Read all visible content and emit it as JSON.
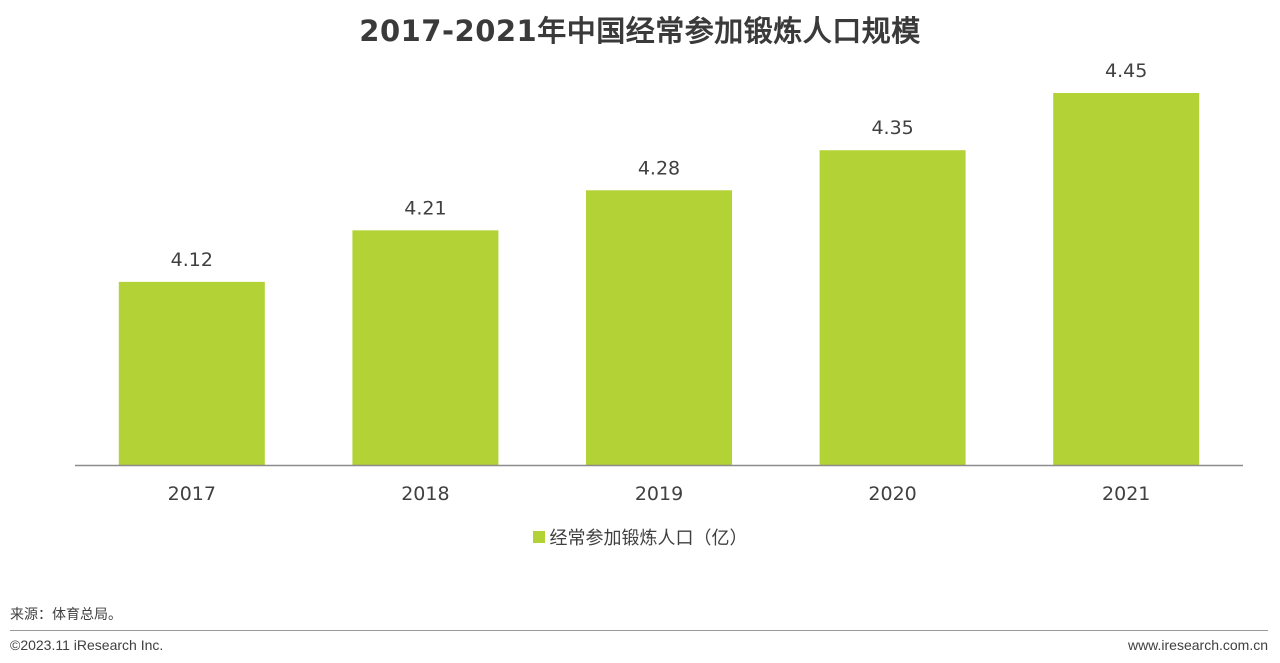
{
  "chart_data": {
    "type": "bar",
    "title": "2017-2021年中国经常参加锻炼人口规模",
    "categories": [
      "2017",
      "2018",
      "2019",
      "2020",
      "2021"
    ],
    "series": [
      {
        "name": "经常参加锻炼人口（亿）",
        "values": [
          4.12,
          4.21,
          4.28,
          4.35,
          4.45
        ]
      }
    ],
    "data_labels": [
      "4.12",
      "4.21",
      "4.28",
      "4.35",
      "4.45"
    ],
    "ylim": [
      3.8,
      4.5
    ],
    "grid": false,
    "legend_position": "bottom",
    "colors": {
      "bar": "#b2d235",
      "axis": "#8c8c8c"
    }
  },
  "footer": {
    "source": "来源：体育总局。",
    "copyright": "©2023.11 iResearch Inc.",
    "website": "www.iresearch.com.cn"
  }
}
